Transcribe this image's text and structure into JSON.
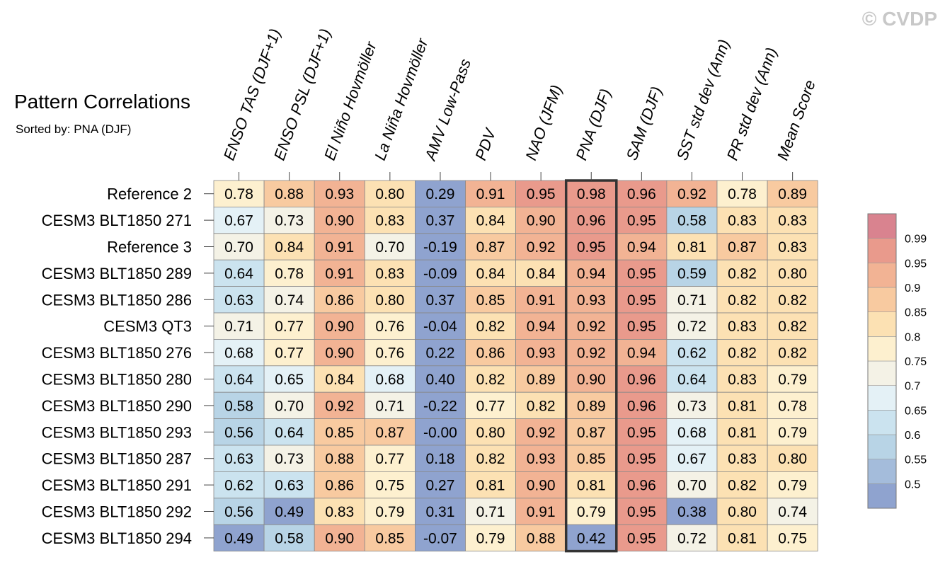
{
  "watermark": "© CVDP",
  "colors": {
    "bins": [
      "#8fa3cf",
      "#a4bcdb",
      "#b8d4e6",
      "#cbe3ef",
      "#e4f1f6",
      "#f4f2e6",
      "#fdf0cf",
      "#fce1b3",
      "#f8caa0",
      "#f2b394",
      "#e99a8c",
      "#d9838f"
    ],
    "text": "#000000",
    "grid": "#888888",
    "highlight": "#333333"
  },
  "chart_data": {
    "type": "heatmap",
    "title": "Pattern Correlations",
    "subtitle": "Sorted by: PNA (DJF)",
    "sorted_by": "PNA (DJF)",
    "columns": [
      "ENSO TAS (DJF+1)",
      "ENSO PSL (DJF+1)",
      "El Niño Hovmöller",
      "La Niña Hovmöller",
      "AMV Low-Pass",
      "PDV",
      "NAO (JFM)",
      "PNA (DJF)",
      "SAM (DJF)",
      "SST std dev (Ann)",
      "PR std dev (Ann)",
      "Mean Score"
    ],
    "rows": [
      "Reference 2",
      "CESM3 BLT1850 271",
      "Reference 3",
      "CESM3 BLT1850 289",
      "CESM3 BLT1850 286",
      "CESM3 QT3",
      "CESM3 BLT1850 276",
      "CESM3 BLT1850 280",
      "CESM3 BLT1850 290",
      "CESM3 BLT1850 293",
      "CESM3 BLT1850 287",
      "CESM3 BLT1850 291",
      "CESM3 BLT1850 292",
      "CESM3 BLT1850 294"
    ],
    "values": [
      [
        "0.78",
        "0.88",
        "0.93",
        "0.80",
        "0.29",
        "0.91",
        "0.95",
        "0.98",
        "0.96",
        "0.92",
        "0.78",
        "0.89"
      ],
      [
        "0.67",
        "0.73",
        "0.90",
        "0.83",
        "0.37",
        "0.84",
        "0.90",
        "0.96",
        "0.95",
        "0.58",
        "0.83",
        "0.83"
      ],
      [
        "0.70",
        "0.84",
        "0.91",
        "0.70",
        "-0.19",
        "0.87",
        "0.92",
        "0.95",
        "0.94",
        "0.81",
        "0.87",
        "0.83"
      ],
      [
        "0.64",
        "0.78",
        "0.91",
        "0.83",
        "-0.09",
        "0.84",
        "0.84",
        "0.94",
        "0.95",
        "0.59",
        "0.82",
        "0.80"
      ],
      [
        "0.63",
        "0.74",
        "0.86",
        "0.80",
        "0.37",
        "0.85",
        "0.91",
        "0.93",
        "0.95",
        "0.71",
        "0.82",
        "0.82"
      ],
      [
        "0.71",
        "0.77",
        "0.90",
        "0.76",
        "-0.04",
        "0.82",
        "0.94",
        "0.92",
        "0.95",
        "0.72",
        "0.83",
        "0.82"
      ],
      [
        "0.68",
        "0.77",
        "0.90",
        "0.76",
        "0.22",
        "0.86",
        "0.93",
        "0.92",
        "0.94",
        "0.62",
        "0.82",
        "0.82"
      ],
      [
        "0.64",
        "0.65",
        "0.84",
        "0.68",
        "0.40",
        "0.82",
        "0.89",
        "0.90",
        "0.96",
        "0.64",
        "0.83",
        "0.79"
      ],
      [
        "0.58",
        "0.70",
        "0.92",
        "0.71",
        "-0.22",
        "0.77",
        "0.82",
        "0.89",
        "0.96",
        "0.73",
        "0.81",
        "0.78"
      ],
      [
        "0.56",
        "0.64",
        "0.85",
        "0.87",
        "-0.00",
        "0.80",
        "0.92",
        "0.87",
        "0.95",
        "0.68",
        "0.81",
        "0.79"
      ],
      [
        "0.63",
        "0.73",
        "0.88",
        "0.77",
        "0.18",
        "0.82",
        "0.93",
        "0.85",
        "0.95",
        "0.67",
        "0.83",
        "0.80"
      ],
      [
        "0.62",
        "0.63",
        "0.86",
        "0.75",
        "0.27",
        "0.81",
        "0.90",
        "0.81",
        "0.96",
        "0.70",
        "0.82",
        "0.79"
      ],
      [
        "0.56",
        "0.49",
        "0.83",
        "0.79",
        "0.31",
        "0.71",
        "0.91",
        "0.79",
        "0.95",
        "0.38",
        "0.80",
        "0.74"
      ],
      [
        "0.49",
        "0.58",
        "0.90",
        "0.85",
        "-0.07",
        "0.79",
        "0.88",
        "0.42",
        "0.95",
        "0.72",
        "0.81",
        "0.75"
      ]
    ],
    "colorbar": {
      "thresholds": [
        0.5,
        0.55,
        0.6,
        0.65,
        0.7,
        0.75,
        0.8,
        0.85,
        0.9,
        0.95,
        0.99
      ],
      "labels": [
        "0.5",
        "0.55",
        "0.6",
        "0.65",
        "0.7",
        "0.75",
        "0.8",
        "0.85",
        "0.9",
        "0.95",
        "0.99"
      ]
    }
  }
}
